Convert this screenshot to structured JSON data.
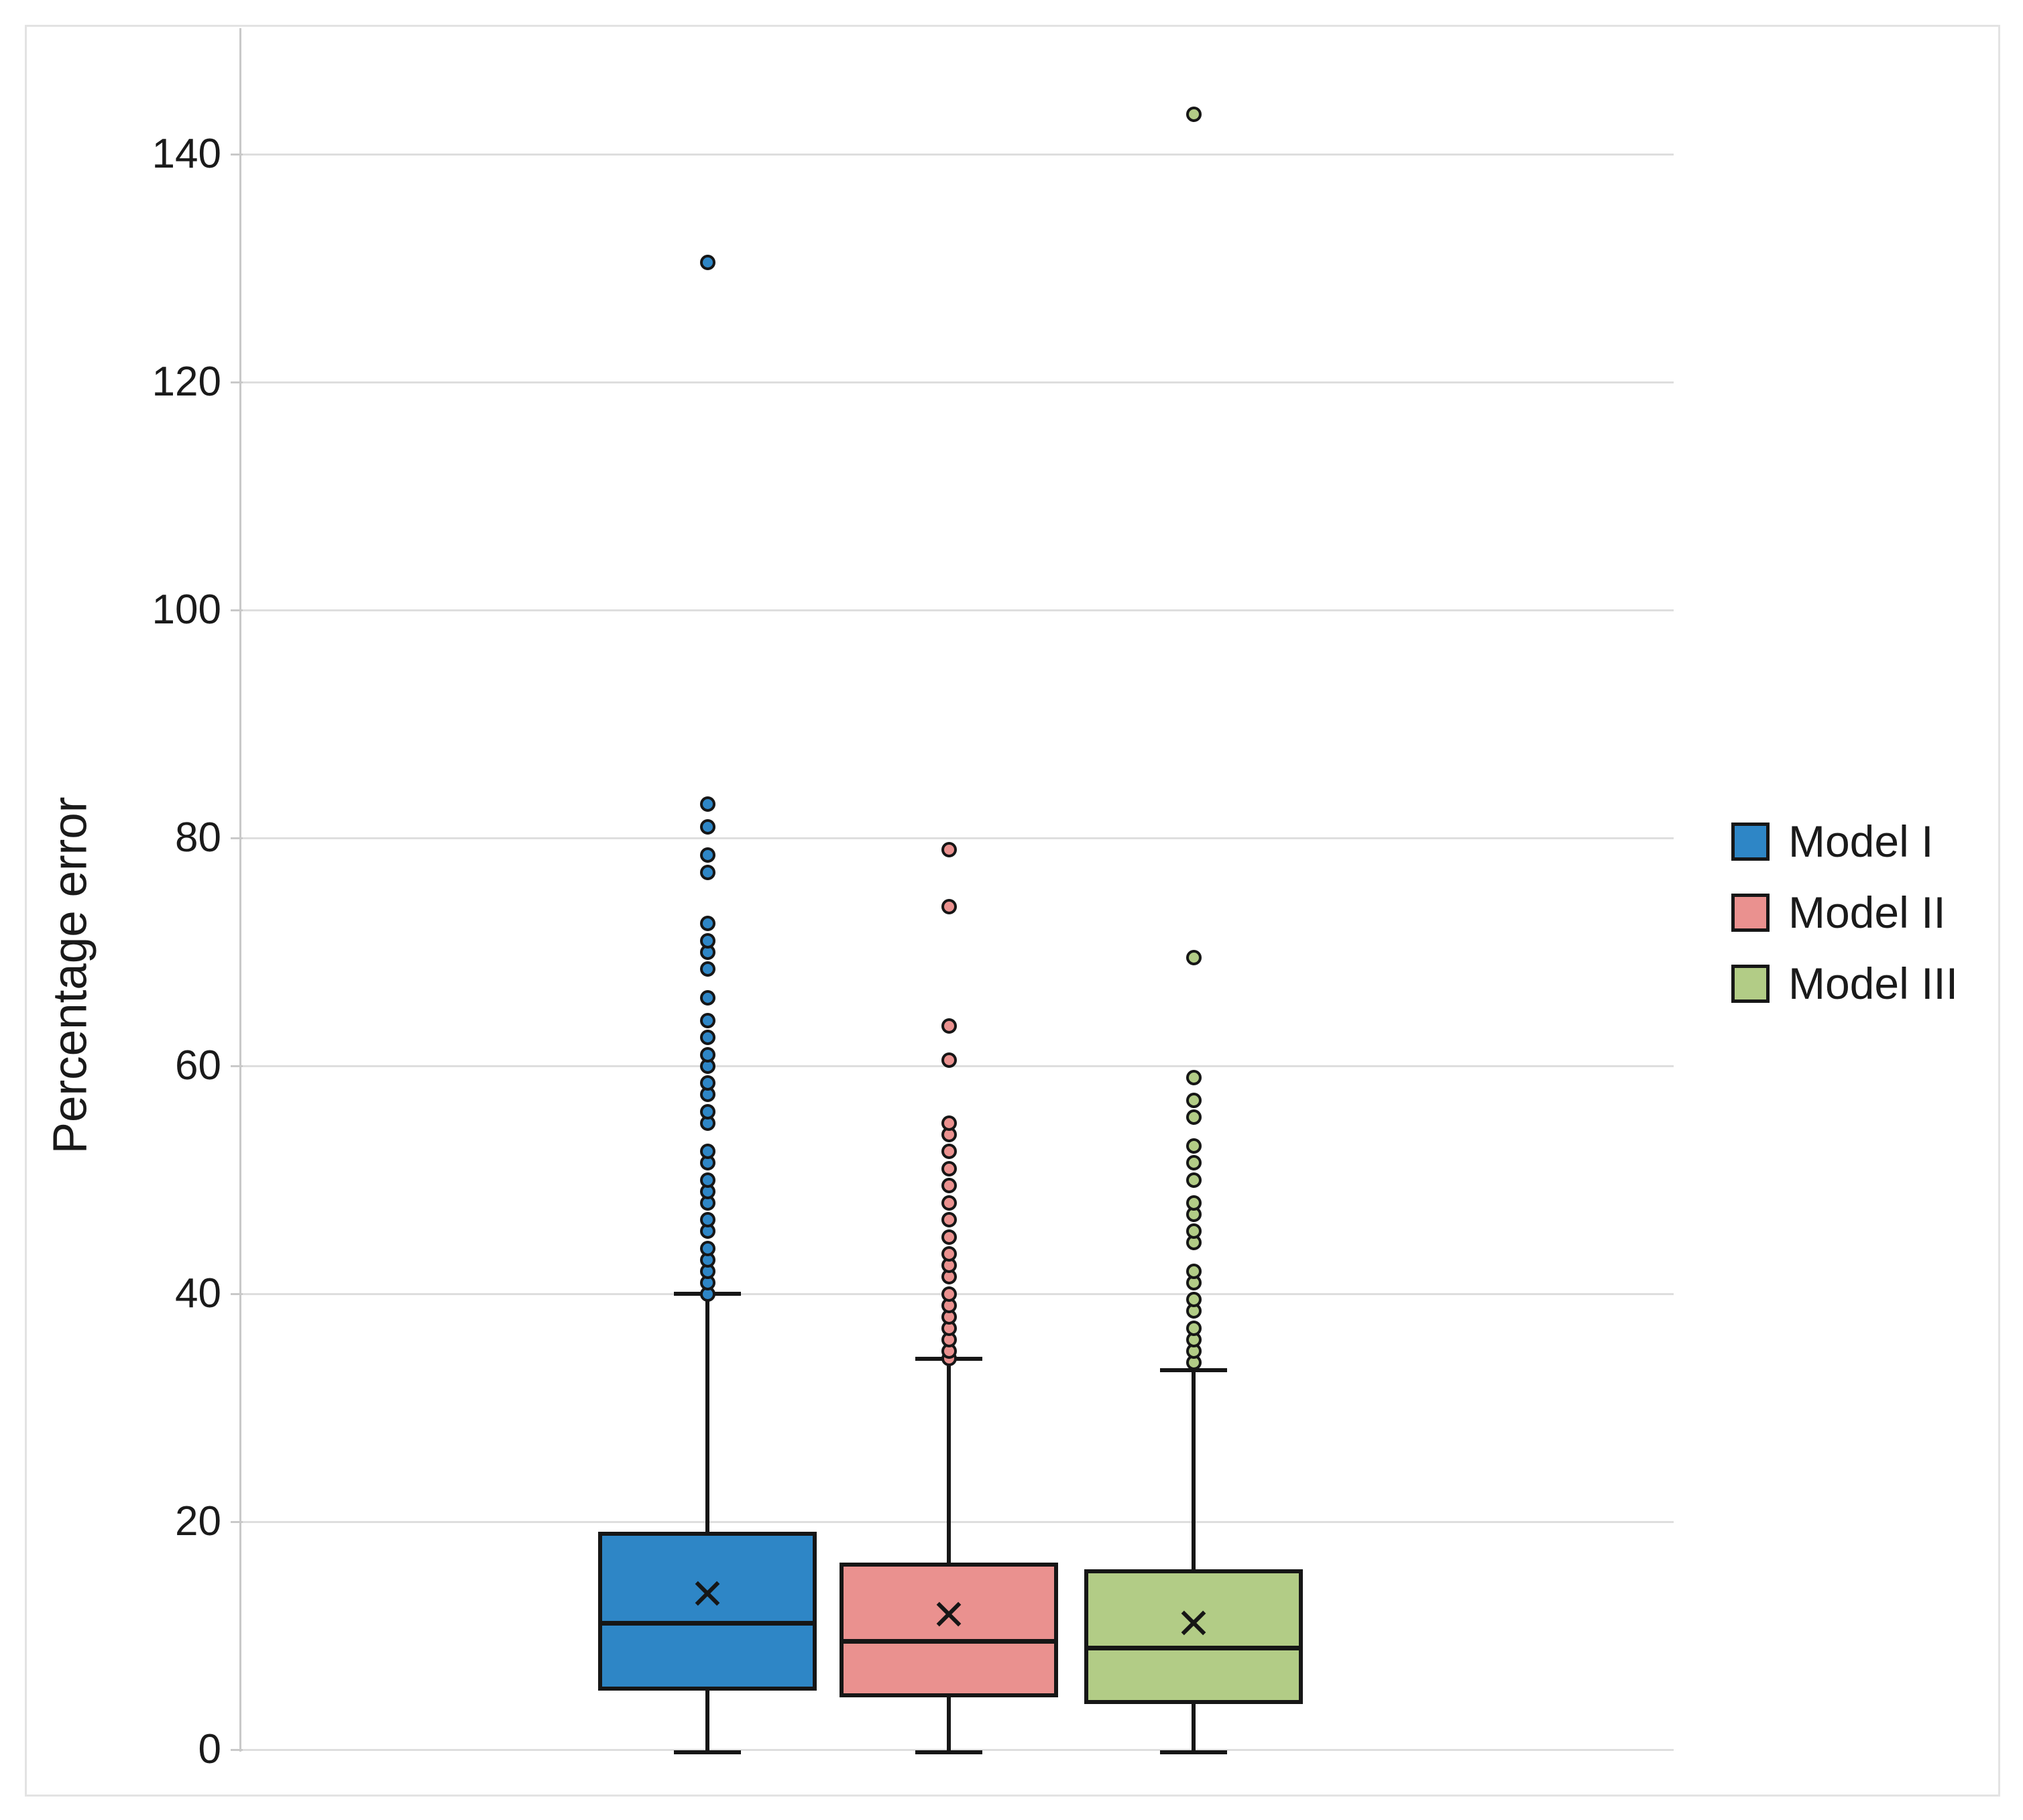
{
  "chart_data": {
    "type": "boxplot",
    "title": "",
    "xlabel": "",
    "ylabel": "Percentage error",
    "ylim": [
      0,
      150
    ],
    "yticks": [
      0,
      20,
      40,
      60,
      80,
      100,
      120,
      140
    ],
    "grid": "horizontal",
    "legend_position": "right",
    "frame_color": "#e3e3e3",
    "gridline_color": "#dedede",
    "stroke_color": "#161616",
    "series": [
      {
        "name": "Model I",
        "color": "#2e86c6",
        "whisker_low": 0,
        "q1": 5.2,
        "median": 11.1,
        "q3": 19.1,
        "whisker_high": 40,
        "mean": 13.7,
        "outliers": [
          40,
          41,
          42,
          43,
          44,
          45.5,
          46.5,
          48,
          49,
          50,
          51.5,
          52.5,
          55,
          56,
          57.5,
          58.5,
          60,
          61,
          62.5,
          64,
          66,
          68.5,
          70,
          71,
          72.5,
          77,
          78.5,
          81,
          83,
          130.5
        ]
      },
      {
        "name": "Model II",
        "color": "#ea918f",
        "whisker_low": 0,
        "q1": 4.6,
        "median": 9.5,
        "q3": 16.4,
        "whisker_high": 34.3,
        "mean": 11.9,
        "outliers": [
          34.3,
          35,
          36,
          37,
          38,
          39,
          40,
          41.5,
          42.5,
          43.5,
          45,
          46.5,
          48,
          49.5,
          51,
          52.5,
          54,
          55,
          60.5,
          63.5,
          74,
          79
        ]
      },
      {
        "name": "Model III",
        "color": "#b2cc86",
        "whisker_low": 0,
        "q1": 4.0,
        "median": 8.9,
        "q3": 15.8,
        "whisker_high": 33.3,
        "mean": 11.1,
        "outliers": [
          34,
          35,
          36,
          37,
          38.5,
          39.5,
          41,
          42,
          44.5,
          45.5,
          47,
          48,
          50,
          51.5,
          53,
          55.5,
          57,
          59,
          69.5,
          143.5
        ]
      }
    ]
  }
}
